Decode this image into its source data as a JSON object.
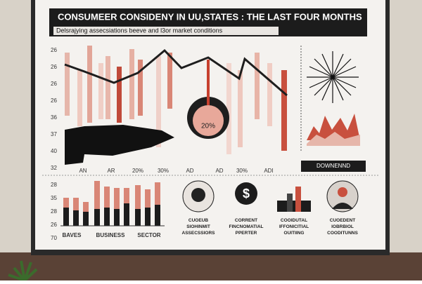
{
  "header": {
    "title": "CONSUMEER CONSIDENY IN UU,STATES : THE LAST FOUR MONTHS",
    "subtitle": "Delsrajying assecsiations beeve and l3or market conditions"
  },
  "upper_chart": {
    "y_labels": [
      "26",
      "26",
      "26",
      "26",
      "36",
      "37",
      "40",
      "32"
    ],
    "x_labels": [
      "AN",
      "AR",
      "20%",
      "30%",
      "AD",
      "AD",
      "30%",
      "ADI"
    ],
    "badge": "20%"
  },
  "downtrend_label": "DOWNENND",
  "lower_chart": {
    "y_labels": [
      "28",
      "35",
      "28",
      "26",
      "70"
    ],
    "x_labels": [
      "BAVES",
      "BUSINESS",
      "SECTOR"
    ]
  },
  "icons": [
    {
      "caption": "CUOEUB SIOHINMIT ASSECSSIORS"
    },
    {
      "caption": "CORRENT FINCNOMATIAL PPERTER"
    },
    {
      "caption": "COOIDUTAL IFFONICITIAL OUITIING"
    },
    {
      "caption": "CUOEDENT IOBRBIOL COODITUNNS"
    }
  ]
}
